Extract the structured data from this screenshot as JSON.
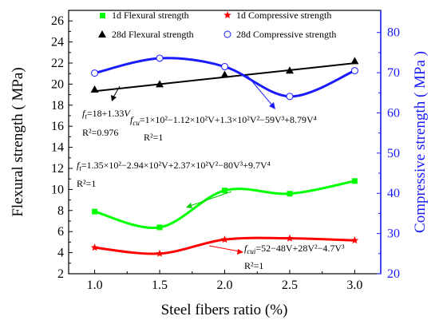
{
  "colors": {
    "left_axis": "#000000",
    "right_axis": "#1a1aff",
    "flex1d": "#00ff00",
    "comp1d": "#ff0000",
    "flex28d": "#000000",
    "comp28d": "#1a1aff"
  },
  "chart_data": {
    "type": "scatter",
    "x": [
      1.0,
      1.5,
      2.0,
      2.5,
      3.0
    ],
    "xlabel": "Steel fibers ratio (%)",
    "ylabel_left": "Flexural strength ( MPa)",
    "ylabel_right": "Compressive strength ( MPa )",
    "xlim": [
      0.8,
      3.2
    ],
    "ylim_left": [
      2,
      27
    ],
    "ylim_right": [
      20,
      85.5
    ],
    "x_ticks": [
      "1.0",
      "1.5",
      "2.0",
      "2.5",
      "3.0"
    ],
    "y_left_ticks": [
      "2",
      "4",
      "6",
      "8",
      "10",
      "12",
      "14",
      "16",
      "18",
      "20",
      "22",
      "24",
      "26"
    ],
    "y_right_ticks": [
      "20",
      "30",
      "40",
      "50",
      "60",
      "70",
      "80"
    ],
    "series": [
      {
        "name": "1d Flexural strength",
        "axis": "left",
        "marker": "square",
        "values": [
          7.9,
          6.4,
          9.9,
          9.6,
          10.8
        ]
      },
      {
        "name": "28d Flexural strength",
        "axis": "left",
        "marker": "triangle",
        "values": [
          19.5,
          20.0,
          20.9,
          21.3,
          22.2
        ]
      },
      {
        "name": "1d Compressive strength",
        "axis": "right",
        "marker": "star",
        "values": [
          26.5,
          25.0,
          28.5,
          28.8,
          28.3
        ]
      },
      {
        "name": "28d Compressive strength",
        "axis": "right",
        "marker": "circle",
        "values": [
          69.9,
          73.6,
          71.5,
          64.1,
          70.5
        ]
      }
    ],
    "equations": {
      "flex28d": {
        "line1": "f",
        "sub1": "t",
        "rest1": "=18+1.33",
        "var1": "V",
        "r2": "R²=0.976"
      },
      "comp28d": {
        "line1": "f",
        "sub1": "cu",
        "rest1": "=1×10²−1.12×10²V+1.3×10²V²−59V³+8.79V⁴",
        "r2": "R²=1"
      },
      "flex1d": {
        "line1": "f",
        "sub1": "t",
        "rest1": "=1.35×10²−2.94×10²V+2.37×10²V²−80V³+9.7V⁴",
        "r2": "R²=1"
      },
      "comp1d": {
        "line1": "f",
        "sub1": "cui",
        "rest1": "=52−48V+28V²−4.7V³",
        "r2": "R²=1"
      }
    }
  }
}
